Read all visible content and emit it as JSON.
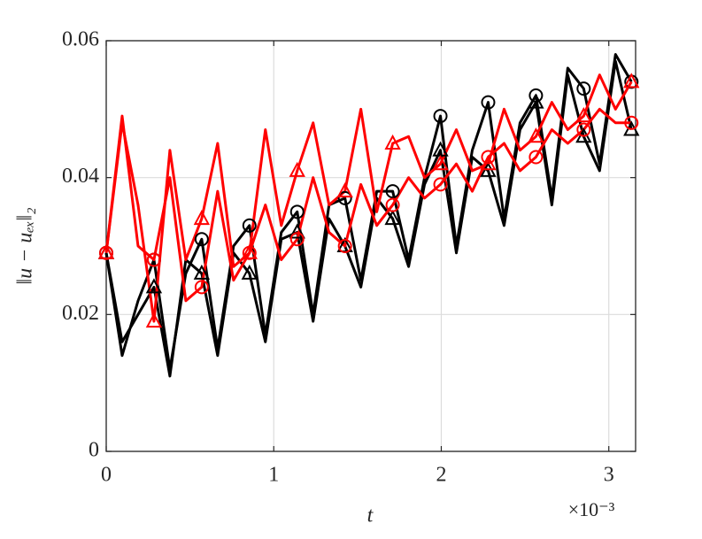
{
  "chart_data": {
    "type": "line",
    "x_label": "t",
    "y_label": "‖u − uₑₓ‖₂",
    "x_exponent_label": "×10⁻³",
    "x": [
      0,
      0.095,
      0.19,
      0.285,
      0.38,
      0.475,
      0.57,
      0.665,
      0.76,
      0.855,
      0.95,
      1.045,
      1.14,
      1.235,
      1.33,
      1.425,
      1.52,
      1.615,
      1.71,
      1.805,
      1.9,
      1.995,
      2.09,
      2.185,
      2.28,
      2.375,
      2.47,
      2.565,
      2.66,
      2.755,
      2.85,
      2.945,
      3.04,
      3.135
    ],
    "series": [
      {
        "color": "#000000",
        "marker": "o",
        "marker_every": 3,
        "values": [
          0.029,
          0.014,
          0.022,
          0.028,
          0.012,
          0.026,
          0.031,
          0.015,
          0.03,
          0.033,
          0.017,
          0.032,
          0.035,
          0.02,
          0.036,
          0.037,
          0.025,
          0.038,
          0.038,
          0.028,
          0.04,
          0.049,
          0.03,
          0.044,
          0.051,
          0.034,
          0.048,
          0.052,
          0.037,
          0.056,
          0.053,
          0.042,
          0.058,
          0.054
        ]
      },
      {
        "color": "#000000",
        "marker": "^",
        "marker_every": 3,
        "values": [
          0.029,
          0.016,
          0.02,
          0.024,
          0.011,
          0.028,
          0.026,
          0.014,
          0.029,
          0.026,
          0.016,
          0.031,
          0.032,
          0.019,
          0.034,
          0.03,
          0.024,
          0.037,
          0.034,
          0.027,
          0.039,
          0.044,
          0.029,
          0.043,
          0.041,
          0.033,
          0.047,
          0.051,
          0.036,
          0.055,
          0.046,
          0.041,
          0.057,
          0.047
        ]
      },
      {
        "color": "#ff0000",
        "marker": "o",
        "marker_every": 3,
        "values": [
          0.029,
          0.049,
          0.03,
          0.028,
          0.04,
          0.022,
          0.024,
          0.038,
          0.025,
          0.029,
          0.036,
          0.028,
          0.031,
          0.04,
          0.032,
          0.03,
          0.039,
          0.033,
          0.036,
          0.04,
          0.037,
          0.039,
          0.042,
          0.038,
          0.043,
          0.045,
          0.041,
          0.043,
          0.047,
          0.045,
          0.047,
          0.05,
          0.048,
          0.048
        ]
      },
      {
        "color": "#ff0000",
        "marker": "^",
        "marker_every": 3,
        "values": [
          0.029,
          0.048,
          0.036,
          0.019,
          0.044,
          0.028,
          0.034,
          0.045,
          0.027,
          0.029,
          0.047,
          0.033,
          0.041,
          0.048,
          0.036,
          0.038,
          0.05,
          0.035,
          0.045,
          0.046,
          0.04,
          0.042,
          0.047,
          0.041,
          0.042,
          0.05,
          0.044,
          0.046,
          0.051,
          0.047,
          0.049,
          0.055,
          0.05,
          0.054
        ]
      }
    ],
    "xlim": [
      0,
      3.16
    ],
    "xticks": [
      0,
      1,
      2,
      3
    ],
    "ylim": [
      0,
      0.06
    ],
    "yticks": [
      0,
      0.02,
      0.04,
      0.06
    ],
    "grid": true
  }
}
